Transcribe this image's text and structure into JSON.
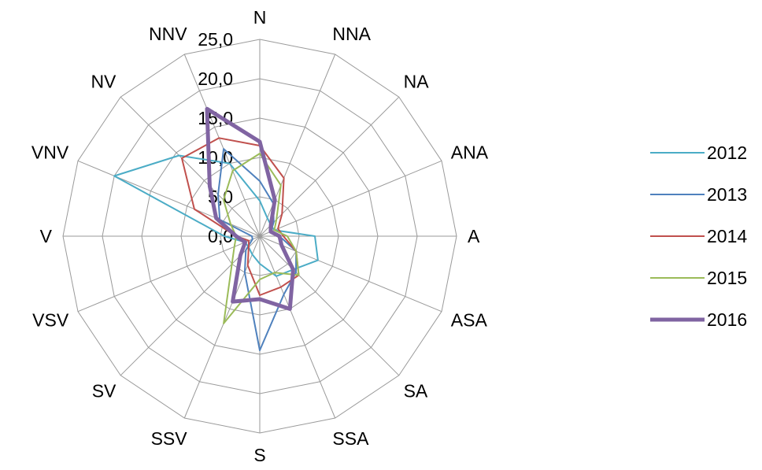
{
  "chart_data": {
    "type": "radar",
    "title": "",
    "directions": [
      "N",
      "NNA",
      "NA",
      "ANA",
      "A",
      "ASA",
      "SA",
      "SSA",
      "S",
      "SSV",
      "SV",
      "VSV",
      "V",
      "VNV",
      "NV",
      "NNV"
    ],
    "rmax": 25,
    "ticks": [
      0,
      5,
      10,
      15,
      20,
      25
    ],
    "tick_labels": [
      "0,0",
      "5,0",
      "10,0",
      "15,0",
      "20,0",
      "25,0"
    ],
    "grid": true,
    "legend_position": "right",
    "series": [
      {
        "name": "2012",
        "color": "#4bacc6",
        "width": 2,
        "values": [
          4.5,
          2.5,
          2.0,
          2.0,
          7.0,
          8.0,
          6.0,
          5.5,
          3.5,
          2.5,
          2.0,
          2.0,
          4.5,
          20.0,
          14.5,
          10.0
        ]
      },
      {
        "name": "2013",
        "color": "#4f81bd",
        "width": 2,
        "values": [
          7.0,
          4.5,
          2.5,
          1.5,
          2.5,
          5.0,
          6.5,
          8.0,
          14.5,
          5.0,
          2.5,
          1.0,
          1.0,
          5.5,
          7.5,
          12.0
        ]
      },
      {
        "name": "2014",
        "color": "#c0504d",
        "width": 2,
        "values": [
          11.5,
          8.0,
          4.0,
          2.5,
          3.0,
          5.0,
          7.0,
          7.0,
          7.5,
          4.0,
          2.0,
          1.5,
          3.0,
          9.0,
          14.0,
          13.5
        ]
      },
      {
        "name": "2015",
        "color": "#9bbb59",
        "width": 2,
        "values": [
          10.5,
          7.0,
          3.0,
          2.0,
          3.5,
          5.0,
          7.0,
          5.0,
          5.5,
          12.0,
          5.0,
          3.5,
          3.0,
          4.0,
          6.5,
          9.0
        ]
      },
      {
        "name": "2016",
        "color": "#8064a2",
        "width": 5,
        "values": [
          12.0,
          5.0,
          2.0,
          1.5,
          2.5,
          3.0,
          6.0,
          10.0,
          8.0,
          9.0,
          3.5,
          2.0,
          3.0,
          6.0,
          9.0,
          17.5
        ]
      }
    ]
  }
}
